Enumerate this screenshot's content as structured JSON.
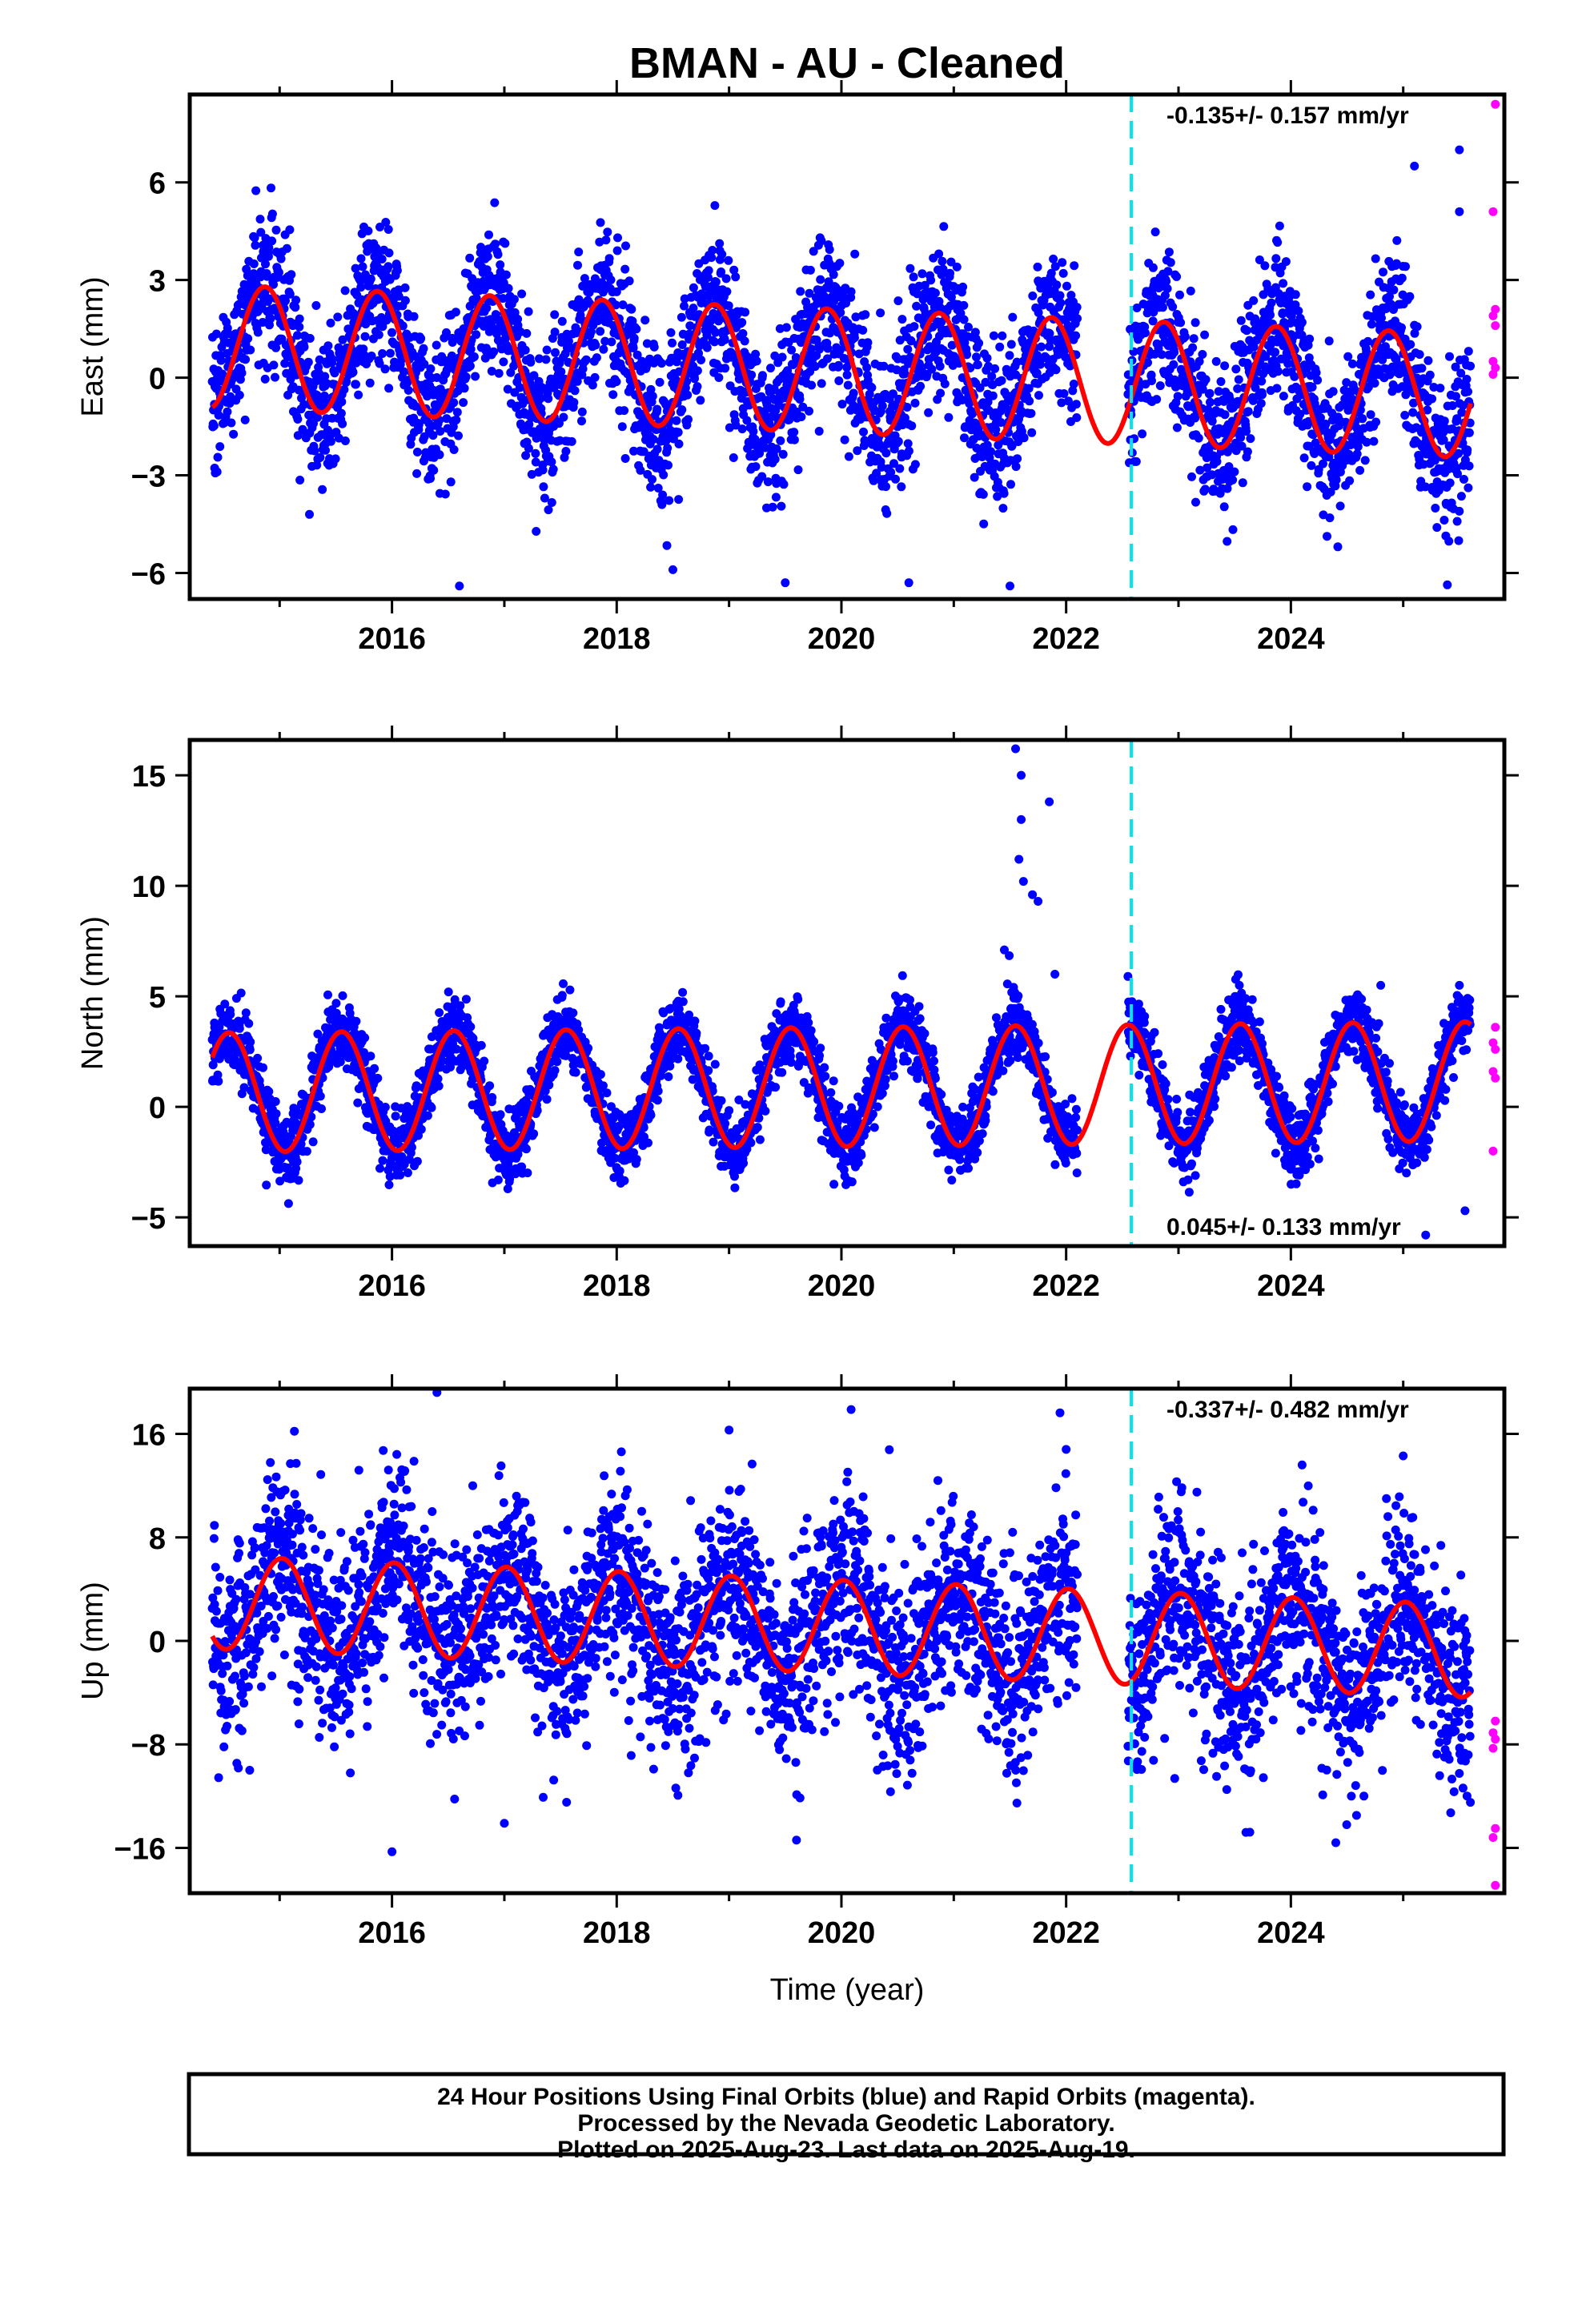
{
  "title": "BMAN  - AU - Cleaned",
  "footer": {
    "line1": "24 Hour Positions Using Final Orbits (blue) and Rapid Orbits (magenta).",
    "line2": "Processed by the Nevada Geodetic Laboratory.",
    "line3": "Plotted on 2025-Aug-23. Last data on 2025-Aug-19."
  },
  "colors": {
    "final_orbits": "#0000ff",
    "rapid_orbits": "#ff00ff",
    "model_fit": "#ff0000",
    "equipment_change": "#00e5ee"
  },
  "chart_data": [
    {
      "type": "scatter",
      "panel": "east",
      "title": "",
      "xlabel": "",
      "ylabel": "East (mm)",
      "xlim": [
        2014.2,
        2025.9
      ],
      "ylim": [
        -6.8,
        8.7
      ],
      "xticks": [
        2016,
        2018,
        2020,
        2022,
        2024
      ],
      "yticks": [
        -6,
        -3,
        0,
        3,
        6
      ],
      "grid": false,
      "rate_label": "-0.135+/- 0.157 mm/yr",
      "rate_label_position": "top-right",
      "vertical_line_x": 2022.58,
      "fit": {
        "mean": 0.2,
        "rate": -0.135,
        "amplitude": 1.9,
        "phase": 0.87,
        "start": 2014.4,
        "end": 2025.6,
        "gap": [
          2022.1,
          2022.55
        ]
      },
      "scatter_sd": 1.15,
      "rapid_points": [
        8.4,
        5.1,
        2.1,
        1.9,
        1.6,
        0.5,
        0.3,
        0.1
      ],
      "outliers": [
        [
          2016.6,
          -6.4
        ],
        [
          2018.5,
          -5.9
        ],
        [
          2019.5,
          -6.3
        ],
        [
          2020.6,
          -6.3
        ],
        [
          2021.5,
          -6.4
        ],
        [
          2025.1,
          6.5
        ],
        [
          2025.5,
          7.0
        ],
        [
          2025.5,
          5.1
        ],
        [
          2025.3,
          -4.6
        ]
      ]
    },
    {
      "type": "scatter",
      "panel": "north",
      "title": "",
      "xlabel": "",
      "ylabel": "North (mm)",
      "xlim": [
        2014.2,
        2025.9
      ],
      "ylim": [
        -6.3,
        16.6
      ],
      "xticks": [
        2016,
        2018,
        2020,
        2022,
        2024
      ],
      "yticks": [
        -5,
        0,
        5,
        10,
        15
      ],
      "grid": false,
      "rate_label": "0.045+/- 0.133 mm/yr",
      "rate_label_position": "bottom-right",
      "vertical_line_x": 2022.58,
      "fit": {
        "mean": 0.9,
        "rate": 0.045,
        "amplitude": 2.7,
        "phase": 0.55,
        "start": 2014.4,
        "end": 2025.6,
        "gap": [
          2022.1,
          2022.55
        ]
      },
      "scatter_sd": 0.8,
      "rapid_points": [
        3.6,
        2.9,
        2.6,
        1.6,
        1.3,
        -2.0
      ],
      "outliers": [
        [
          2021.55,
          16.2
        ],
        [
          2021.6,
          15.0
        ],
        [
          2021.6,
          13.0
        ],
        [
          2021.58,
          11.2
        ],
        [
          2021.62,
          10.2
        ],
        [
          2021.7,
          9.6
        ],
        [
          2021.85,
          13.8
        ],
        [
          2021.75,
          9.3
        ],
        [
          2021.45,
          7.1
        ],
        [
          2021.9,
          6.0
        ],
        [
          2022.55,
          5.9
        ],
        [
          2024.8,
          5.5
        ],
        [
          2025.5,
          5.5
        ],
        [
          2025.55,
          -4.7
        ],
        [
          2025.2,
          -5.8
        ]
      ]
    },
    {
      "type": "scatter",
      "panel": "up",
      "title": "",
      "xlabel": "Time (year)",
      "ylabel": "Up (mm)",
      "xlim": [
        2014.2,
        2025.9
      ],
      "ylim": [
        -19.5,
        19.5
      ],
      "xticks": [
        2016,
        2018,
        2020,
        2022,
        2024
      ],
      "yticks": [
        -16,
        -8,
        0,
        8,
        16
      ],
      "grid": false,
      "rate_label": "-0.337+/- 0.482 mm/yr",
      "rate_label_position": "top-right",
      "vertical_line_x": 2022.58,
      "fit": {
        "mean": 1.1,
        "rate": -0.337,
        "amplitude": 3.6,
        "phase": 0.02,
        "start": 2014.4,
        "end": 2025.6,
        "gap": [
          2022.1,
          2022.55
        ]
      },
      "scatter_sd": 3.8,
      "rapid_points": [
        -6.2,
        -7.1,
        -7.6,
        -8.3,
        -14.5,
        -15.2,
        -18.9
      ],
      "outliers": [
        [
          2016.4,
          19.2
        ],
        [
          2016.0,
          -16.3
        ],
        [
          2019.0,
          16.3
        ],
        [
          2019.6,
          -15.4
        ],
        [
          2022.0,
          14.8
        ],
        [
          2023.6,
          -14.8
        ],
        [
          2024.1,
          13.6
        ],
        [
          2025.0,
          14.3
        ],
        [
          2024.4,
          -15.6
        ],
        [
          2017.0,
          -14.1
        ]
      ]
    }
  ]
}
